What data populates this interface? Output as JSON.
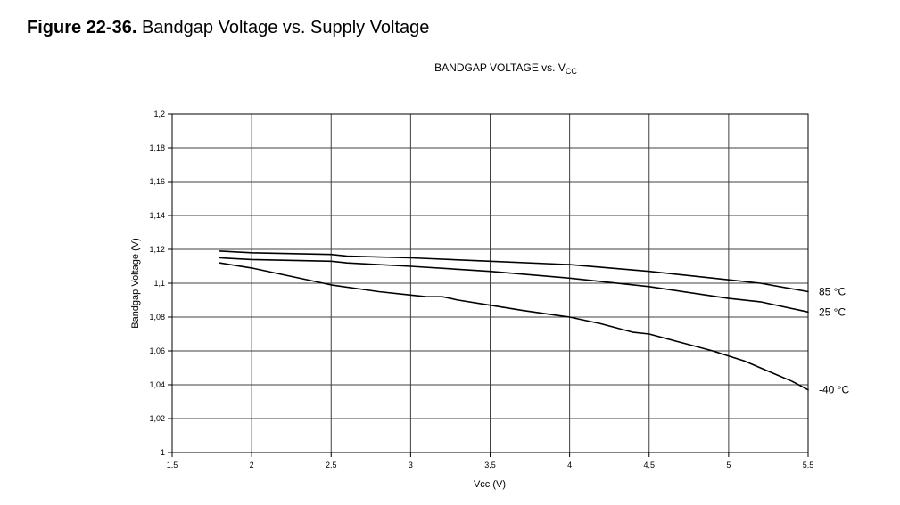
{
  "figure": {
    "number": "Figure 22-36.",
    "title": "Bandgap Voltage vs. Supply Voltage"
  },
  "chart_data": {
    "type": "line",
    "title": "BANDGAP VOLTAGE vs. V",
    "title_subscript": "CC",
    "xlabel": "Vcc (V)",
    "ylabel": "Bandgap Voltage (V)",
    "xlim": [
      1.5,
      5.5
    ],
    "ylim": [
      1.0,
      1.2
    ],
    "x_ticks": [
      1.5,
      2,
      2.5,
      3,
      3.5,
      4,
      4.5,
      5,
      5.5
    ],
    "x_tick_labels": [
      "1,5",
      "2",
      "2,5",
      "3",
      "3,5",
      "4",
      "4,5",
      "5",
      "5,5"
    ],
    "y_ticks": [
      1.0,
      1.02,
      1.04,
      1.06,
      1.08,
      1.1,
      1.12,
      1.14,
      1.16,
      1.18,
      1.2
    ],
    "y_tick_labels": [
      "1",
      "1,02",
      "1,04",
      "1,06",
      "1,08",
      "1,1",
      "1,12",
      "1,14",
      "1,16",
      "1,18",
      "1,2"
    ],
    "grid": true,
    "line_color": "#000000",
    "grid_color": "#404040",
    "series": [
      {
        "name": "85 °C",
        "x": [
          1.8,
          2.0,
          2.5,
          2.6,
          3.0,
          3.5,
          4.0,
          4.5,
          5.0,
          5.2,
          5.5
        ],
        "y": [
          1.119,
          1.118,
          1.117,
          1.116,
          1.115,
          1.113,
          1.111,
          1.107,
          1.102,
          1.1,
          1.095
        ]
      },
      {
        "name": "25 °C",
        "x": [
          1.8,
          2.0,
          2.5,
          2.6,
          3.0,
          3.5,
          4.0,
          4.5,
          5.0,
          5.2,
          5.5
        ],
        "y": [
          1.115,
          1.114,
          1.113,
          1.112,
          1.11,
          1.107,
          1.103,
          1.098,
          1.091,
          1.089,
          1.083
        ]
      },
      {
        "name": "-40 °C",
        "x": [
          1.8,
          2.0,
          2.2,
          2.5,
          2.8,
          3.0,
          3.1,
          3.2,
          3.3,
          3.5,
          3.7,
          4.0,
          4.2,
          4.4,
          4.5,
          4.7,
          4.9,
          5.0,
          5.1,
          5.2,
          5.3,
          5.4,
          5.5
        ],
        "y": [
          1.112,
          1.109,
          1.105,
          1.099,
          1.095,
          1.093,
          1.092,
          1.092,
          1.09,
          1.087,
          1.084,
          1.08,
          1.076,
          1.071,
          1.07,
          1.065,
          1.06,
          1.057,
          1.054,
          1.05,
          1.046,
          1.042,
          1.037
        ]
      }
    ]
  }
}
